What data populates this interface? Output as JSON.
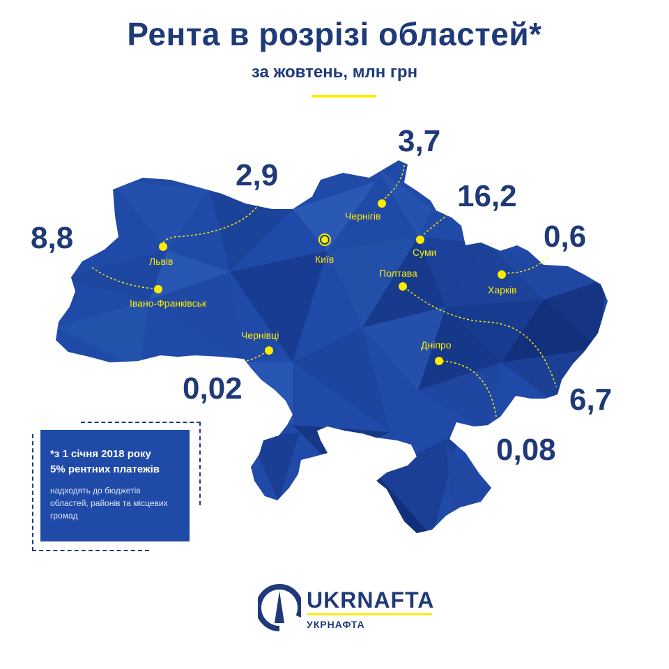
{
  "title": "Рента в розрізі областей*",
  "subtitle": "за жовтень, млн грн",
  "colors": {
    "title": "#1f3a78",
    "map_fill": "#1f4aa8",
    "map_dark": "#173a8c",
    "city_markers": "#ffeb00",
    "accent": "#ffeb00"
  },
  "regions": [
    {
      "city": "Львів",
      "value": "2,9"
    },
    {
      "city": "Івано-Франківськ",
      "value": "8,8"
    },
    {
      "city": "Чернівці",
      "value": "0,02"
    },
    {
      "city": "Чернігів",
      "value": "3,7"
    },
    {
      "city": "Суми",
      "value": "16,2"
    },
    {
      "city": "Харків",
      "value": "0,6"
    },
    {
      "city": "Полтава",
      "value": "6,7"
    },
    {
      "city": "Дніпро",
      "value": "0,08"
    }
  ],
  "capital": {
    "city": "Київ"
  },
  "note": {
    "heading_line1": "*з 1 січня 2018 року",
    "heading_line2": "5% рентних платежів",
    "body_line1": "надходять до бюджетів",
    "body_line2": "областей, районів та місцевих",
    "body_line3": "громад"
  },
  "logo": {
    "name": "UKRNAFTA",
    "subname": "УКРНАФТА",
    "icon": "ukrnafta-logo-icon"
  }
}
